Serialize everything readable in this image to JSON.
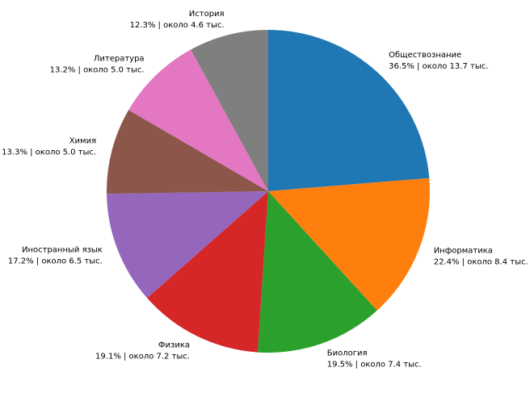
{
  "chart_data": {
    "type": "pie",
    "categories": [
      "Обществознание",
      "Информатика",
      "Биология",
      "Физика",
      "Иностранный язык",
      "Химия",
      "Литература",
      "История"
    ],
    "values": [
      13.7,
      8.4,
      7.4,
      7.2,
      6.5,
      5.0,
      5.0,
      4.6
    ],
    "value_labels": [
      "36.5% | около 13.7 тыс.",
      "22.4% | около 8.4 тыс.",
      "19.5% | около 7.4 тыс.",
      "19.1% | около 7.2 тыс.",
      "17.2% | около 6.5 тыс.",
      "13.3% | около 5.0 тыс.",
      "13.2% | около 5.0 тыс.",
      "12.3% | около 4.6 тыс."
    ],
    "colors": [
      "#1f77b4",
      "#ff7f0e",
      "#2ca02c",
      "#d62728",
      "#9467bd",
      "#8c564b",
      "#e377c2",
      "#7f7f7f"
    ],
    "start_angle": 90,
    "clockwise": true
  }
}
